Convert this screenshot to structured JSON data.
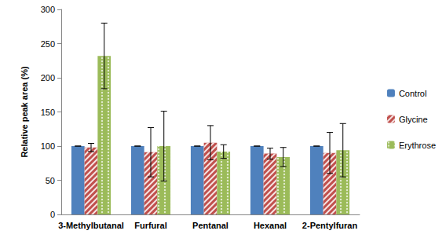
{
  "chart_data": {
    "type": "bar",
    "y_label": "Relative peak area (%)",
    "categories": [
      "3-Methylbutanal",
      "Furfural",
      "Pentanal",
      "Hexanal",
      "2-Pentylfuran"
    ],
    "series": [
      {
        "name": "Control",
        "color": "#4f81bd",
        "values": [
          100,
          100,
          100,
          100,
          100
        ],
        "errors": [
          0,
          0,
          0,
          0,
          0
        ]
      },
      {
        "name": "Glycine",
        "color": "#c0504d",
        "values": [
          98,
          91,
          105,
          89,
          90
        ],
        "errors": [
          6,
          36,
          25,
          8,
          30
        ]
      },
      {
        "name": "Erythrose",
        "color": "#9bbb59",
        "values": [
          232,
          100,
          92,
          84,
          94
        ],
        "errors": [
          48,
          51,
          10,
          14,
          39
        ]
      }
    ],
    "ylim": [
      0,
      300
    ],
    "yticks": [
      0,
      50,
      100,
      150,
      200,
      250,
      300
    ],
    "grid": false,
    "legend": "right"
  }
}
